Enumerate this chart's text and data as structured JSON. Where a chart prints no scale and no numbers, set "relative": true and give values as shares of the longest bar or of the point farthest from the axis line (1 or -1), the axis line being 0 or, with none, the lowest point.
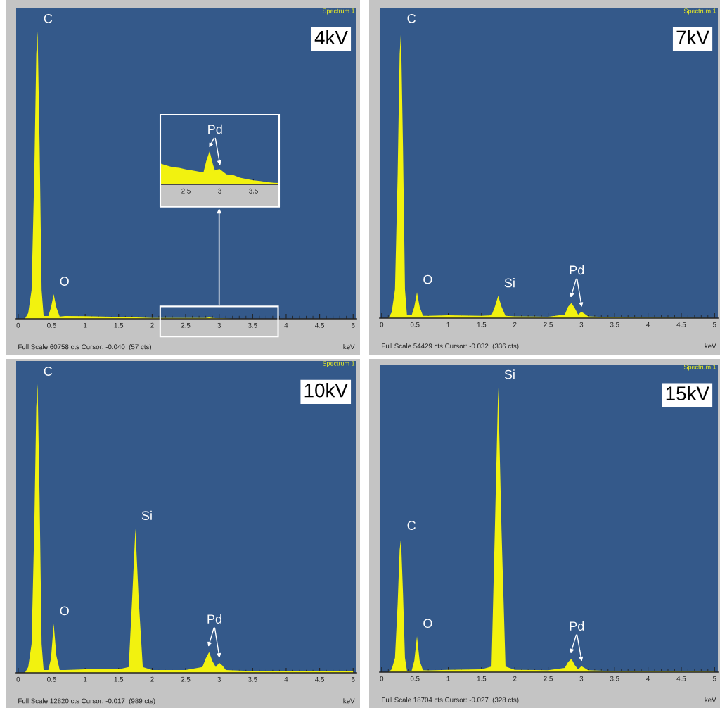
{
  "chart_data": [
    {
      "type": "area",
      "relative": true,
      "title": "4kV",
      "xlabel": "keV",
      "xlim": [
        -0.03,
        5.05
      ],
      "xticks": [
        0,
        0.5,
        1,
        1.5,
        2,
        2.5,
        3,
        3.5,
        4,
        4.5,
        5
      ],
      "x": [
        0.1,
        0.15,
        0.2,
        0.24,
        0.27,
        0.29,
        0.32,
        0.35,
        0.38,
        0.45,
        0.49,
        0.53,
        0.57,
        0.62,
        0.7,
        1.0,
        1.5,
        1.85,
        2.0,
        2.6,
        2.8,
        2.85,
        2.9,
        3.0,
        3.05,
        3.2,
        5.0
      ],
      "series": [
        {
          "color": "#f2f20f",
          "values": [
            0,
            0.02,
            0.1,
            0.5,
            0.92,
            1,
            0.6,
            0.1,
            0.01,
            0.01,
            0.04,
            0.086,
            0.04,
            0.008,
            0.01,
            0.009,
            0.007,
            0.004,
            0.003,
            0.003,
            0.003,
            0.005,
            0.003,
            0.002,
            0.002,
            0,
            0
          ]
        }
      ],
      "annotations": [
        "Spectrum 1",
        "Full Scale 60758 cts Cursor: -0.040  (57 cts)",
        {
          "text": "C",
          "x": 0.29,
          "y": 1
        },
        {
          "text": "O",
          "x": 0.53,
          "y": 0.086
        }
      ]
    },
    {
      "type": "area",
      "relative": true,
      "xlim": [
        2.12,
        3.88
      ],
      "xticks": [
        2.5,
        3,
        3.5
      ],
      "x": [
        2.12,
        2.2,
        2.3,
        2.4,
        2.5,
        2.6,
        2.7,
        2.76,
        2.8,
        2.85,
        2.9,
        2.93,
        2.97,
        3.0,
        3.05,
        3.1,
        3.2,
        3.3,
        3.4,
        3.5,
        3.6,
        3.7,
        3.8,
        3.88
      ],
      "series": [
        {
          "color": "#f2f20f",
          "values": [
            0.63,
            0.58,
            0.52,
            0.5,
            0.45,
            0.42,
            0.38,
            0.37,
            0.7,
            1,
            0.6,
            0.42,
            0.45,
            0.46,
            0.38,
            0.3,
            0.28,
            0.2,
            0.16,
            0.12,
            0.1,
            0.07,
            0.05,
            0.04
          ]
        }
      ],
      "annotations": [
        {
          "text": "Pd",
          "x": 2.85,
          "y": 1
        }
      ]
    },
    {
      "type": "area",
      "relative": true,
      "title": "7kV",
      "xlabel": "keV",
      "xlim": [
        -0.03,
        5.05
      ],
      "xticks": [
        0,
        0.5,
        1,
        1.5,
        2,
        2.5,
        3,
        3.5,
        4,
        4.5,
        5
      ],
      "x": [
        0.1,
        0.15,
        0.2,
        0.24,
        0.27,
        0.29,
        0.32,
        0.35,
        0.38,
        0.45,
        0.49,
        0.53,
        0.57,
        0.62,
        0.7,
        1.0,
        1.5,
        1.65,
        1.7,
        1.75,
        1.8,
        1.86,
        2.0,
        2.5,
        2.75,
        2.8,
        2.85,
        2.9,
        2.95,
        3.0,
        3.05,
        3.1,
        3.5,
        3.65,
        5.0
      ],
      "series": [
        {
          "color": "#f2f20f",
          "values": [
            0,
            0.02,
            0.1,
            0.5,
            0.92,
            1,
            0.6,
            0.1,
            0.01,
            0.01,
            0.04,
            0.09,
            0.04,
            0.008,
            0.008,
            0.01,
            0.008,
            0.01,
            0.04,
            0.078,
            0.04,
            0.008,
            0.006,
            0.005,
            0.012,
            0.04,
            0.053,
            0.035,
            0.012,
            0.022,
            0.015,
            0.006,
            0.003,
            0.002,
            0
          ]
        }
      ],
      "annotations": [
        "Spectrum 1",
        "Full Scale 54429 cts Cursor: -0.032  (336 cts)",
        {
          "text": "C",
          "x": 0.29,
          "y": 1
        },
        {
          "text": "O",
          "x": 0.53,
          "y": 0.09
        },
        {
          "text": "Si",
          "x": 1.75,
          "y": 0.078
        },
        {
          "text": "Pd",
          "x": 2.85,
          "y": 0.053
        }
      ]
    },
    {
      "type": "area",
      "relative": true,
      "title": "10kV",
      "xlabel": "keV",
      "xlim": [
        -0.03,
        5.05
      ],
      "xticks": [
        0,
        0.5,
        1,
        1.5,
        2,
        2.5,
        3,
        3.5,
        4,
        4.5,
        5
      ],
      "x": [
        0.1,
        0.15,
        0.2,
        0.24,
        0.27,
        0.29,
        0.32,
        0.35,
        0.38,
        0.45,
        0.49,
        0.53,
        0.57,
        0.62,
        0.7,
        1.0,
        1.5,
        1.65,
        1.7,
        1.75,
        1.8,
        1.86,
        2.0,
        2.5,
        2.75,
        2.8,
        2.85,
        2.9,
        2.95,
        3.0,
        3.05,
        3.1,
        3.5,
        4.0,
        5.0
      ],
      "series": [
        {
          "color": "#f2f20f",
          "values": [
            0,
            0.02,
            0.1,
            0.5,
            0.92,
            1,
            0.6,
            0.1,
            0.01,
            0.01,
            0.05,
            0.17,
            0.06,
            0.01,
            0.01,
            0.012,
            0.012,
            0.02,
            0.25,
            0.5,
            0.25,
            0.02,
            0.01,
            0.01,
            0.02,
            0.05,
            0.072,
            0.04,
            0.02,
            0.035,
            0.025,
            0.01,
            0.006,
            0.005,
            0.005
          ]
        }
      ],
      "annotations": [
        "Spectrum 1",
        "Full Scale 12820 cts Cursor: -0.017  (989 cts)",
        {
          "text": "C",
          "x": 0.29,
          "y": 1
        },
        {
          "text": "O",
          "x": 0.53,
          "y": 0.17
        },
        {
          "text": "Si",
          "x": 1.75,
          "y": 0.5
        },
        {
          "text": "Pd",
          "x": 2.85,
          "y": 0.072
        }
      ]
    },
    {
      "type": "area",
      "relative": true,
      "title": "15kV",
      "xlabel": "keV",
      "xlim": [
        -0.03,
        5.05
      ],
      "xticks": [
        0,
        0.5,
        1,
        1.5,
        2,
        2.5,
        3,
        3.5,
        4,
        4.5,
        5
      ],
      "x": [
        0.1,
        0.15,
        0.2,
        0.24,
        0.27,
        0.29,
        0.32,
        0.35,
        0.38,
        0.45,
        0.49,
        0.53,
        0.57,
        0.62,
        0.7,
        1.0,
        1.5,
        1.65,
        1.7,
        1.75,
        1.8,
        1.86,
        2.0,
        2.5,
        2.75,
        2.8,
        2.85,
        2.9,
        2.95,
        3.0,
        3.05,
        3.1,
        3.5,
        3.65,
        5.0
      ],
      "series": [
        {
          "color": "#f2f20f",
          "values": [
            0,
            0.01,
            0.05,
            0.24,
            0.43,
            0.47,
            0.28,
            0.05,
            0.005,
            0.005,
            0.04,
            0.126,
            0.04,
            0.007,
            0.006,
            0.008,
            0.01,
            0.02,
            0.5,
            1,
            0.5,
            0.02,
            0.008,
            0.007,
            0.015,
            0.035,
            0.047,
            0.025,
            0.01,
            0.021,
            0.014,
            0.007,
            0.004,
            0.003,
            0.002
          ]
        }
      ],
      "annotations": [
        "Spectrum 1",
        "Full Scale 18704 cts Cursor: -0.027  (328 cts)",
        {
          "text": "C",
          "x": 0.29,
          "y": 0.47
        },
        {
          "text": "O",
          "x": 0.53,
          "y": 0.126
        },
        {
          "text": "Si",
          "x": 1.75,
          "y": 1
        },
        {
          "text": "Pd",
          "x": 2.85,
          "y": 0.047
        }
      ]
    }
  ]
}
